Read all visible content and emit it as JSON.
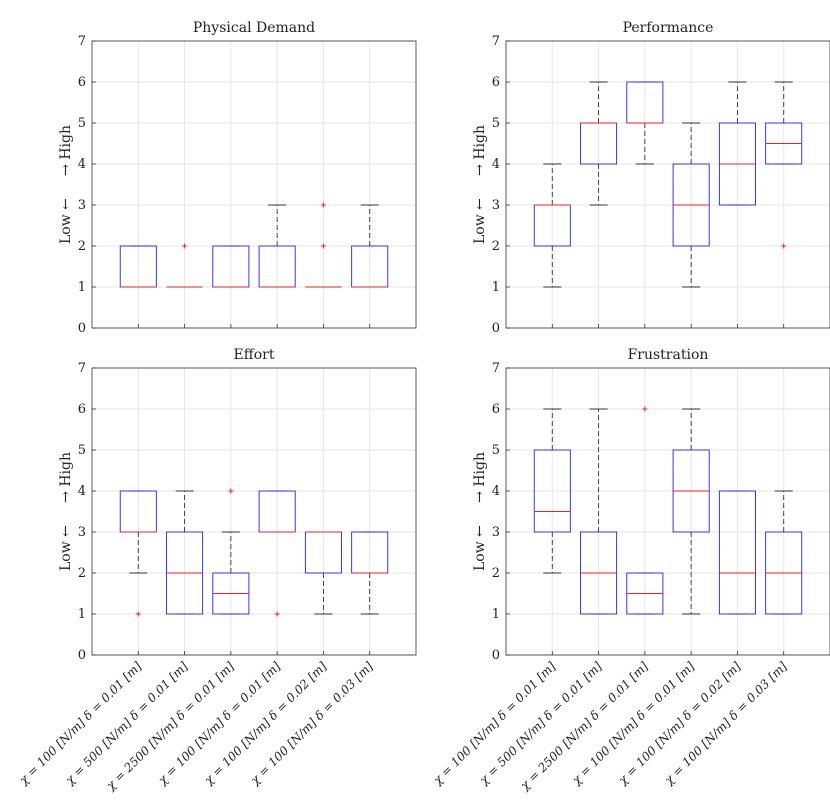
{
  "chart_data": [
    {
      "type": "box",
      "title": "Physical Demand",
      "ylabel": "Low ←     → High",
      "ylim": [
        0,
        7
      ],
      "yticks": [
        0,
        1,
        2,
        3,
        4,
        5,
        6,
        7
      ],
      "grid": true,
      "categories": [],
      "boxes": [
        {
          "q1": 1,
          "median": 1,
          "q3": 2,
          "whisker_low": 1,
          "whisker_high": 2,
          "outliers": []
        },
        {
          "q1": 1,
          "median": 1,
          "q3": 1,
          "whisker_low": 1,
          "whisker_high": 1,
          "outliers": [
            2
          ]
        },
        {
          "q1": 1,
          "median": 1,
          "q3": 2,
          "whisker_low": 1,
          "whisker_high": 2,
          "outliers": []
        },
        {
          "q1": 1,
          "median": 1,
          "q3": 2,
          "whisker_low": 1,
          "whisker_high": 3,
          "outliers": []
        },
        {
          "q1": 1,
          "median": 1,
          "q3": 1,
          "whisker_low": 1,
          "whisker_high": 1,
          "outliers": [
            2,
            3
          ]
        },
        {
          "q1": 1,
          "median": 1,
          "q3": 2,
          "whisker_low": 1,
          "whisker_high": 3,
          "outliers": []
        }
      ]
    },
    {
      "type": "box",
      "title": "Performance",
      "ylabel": "Low ←     → High",
      "ylim": [
        0,
        7
      ],
      "yticks": [
        0,
        1,
        2,
        3,
        4,
        5,
        6,
        7
      ],
      "grid": true,
      "categories": [],
      "boxes": [
        {
          "q1": 2,
          "median": 3,
          "q3": 3,
          "whisker_low": 1,
          "whisker_high": 4,
          "outliers": []
        },
        {
          "q1": 4,
          "median": 5,
          "q3": 5,
          "whisker_low": 3,
          "whisker_high": 6,
          "outliers": []
        },
        {
          "q1": 5,
          "median": 5,
          "q3": 6,
          "whisker_low": 4,
          "whisker_high": 6,
          "outliers": []
        },
        {
          "q1": 2,
          "median": 3,
          "q3": 4,
          "whisker_low": 1,
          "whisker_high": 5,
          "outliers": []
        },
        {
          "q1": 3,
          "median": 4,
          "q3": 5,
          "whisker_low": 3,
          "whisker_high": 6,
          "outliers": []
        },
        {
          "q1": 4,
          "median": 4.5,
          "q3": 5,
          "whisker_low": 4,
          "whisker_high": 6,
          "outliers": [
            2
          ]
        }
      ]
    },
    {
      "type": "box",
      "title": "Effort",
      "ylabel": "Low ←     → High",
      "ylim": [
        0,
        7
      ],
      "yticks": [
        0,
        1,
        2,
        3,
        4,
        5,
        6,
        7
      ],
      "grid": true,
      "categories": [
        "χ = 100 [N/m] δ = 0.01 [m]",
        "χ = 500 [N/m] δ = 0.01 [m]",
        "χ = 2500 [N/m] δ = 0.01 [m]",
        "χ = 100 [N/m] δ = 0.01 [m]",
        "χ = 100 [N/m] δ = 0.02 [m]",
        "χ = 100 [N/m] δ = 0.03 [m]"
      ],
      "boxes": [
        {
          "q1": 3,
          "median": 3,
          "q3": 4,
          "whisker_low": 2,
          "whisker_high": 4,
          "outliers": [
            1
          ]
        },
        {
          "q1": 1,
          "median": 2,
          "q3": 3,
          "whisker_low": 1,
          "whisker_high": 4,
          "outliers": []
        },
        {
          "q1": 1,
          "median": 1.5,
          "q3": 2,
          "whisker_low": 1,
          "whisker_high": 3,
          "outliers": [
            4
          ]
        },
        {
          "q1": 3,
          "median": 3,
          "q3": 4,
          "whisker_low": 3,
          "whisker_high": 4,
          "outliers": [
            1
          ]
        },
        {
          "q1": 2,
          "median": 3,
          "q3": 3,
          "whisker_low": 1,
          "whisker_high": 3,
          "outliers": []
        },
        {
          "q1": 2,
          "median": 2,
          "q3": 3,
          "whisker_low": 1,
          "whisker_high": 3,
          "outliers": []
        }
      ]
    },
    {
      "type": "box",
      "title": "Frustration",
      "ylabel": "Low ←     → High",
      "ylim": [
        0,
        7
      ],
      "yticks": [
        0,
        1,
        2,
        3,
        4,
        5,
        6,
        7
      ],
      "grid": true,
      "categories": [
        "χ = 100 [N/m] δ = 0.01 [m]",
        "χ = 500 [N/m] δ = 0.01 [m]",
        "χ = 2500 [N/m] δ = 0.01 [m]",
        "χ = 100 [N/m] δ = 0.01 [m]",
        "χ = 100 [N/m] δ = 0.02 [m]",
        "χ = 100 [N/m] δ = 0.03 [m]"
      ],
      "boxes": [
        {
          "q1": 3,
          "median": 3.5,
          "q3": 5,
          "whisker_low": 2,
          "whisker_high": 6,
          "outliers": []
        },
        {
          "q1": 1,
          "median": 2,
          "q3": 3,
          "whisker_low": 1,
          "whisker_high": 6,
          "outliers": []
        },
        {
          "q1": 1,
          "median": 1.5,
          "q3": 2,
          "whisker_low": 1,
          "whisker_high": 2,
          "outliers": [
            6
          ]
        },
        {
          "q1": 3,
          "median": 4,
          "q3": 5,
          "whisker_low": 1,
          "whisker_high": 6,
          "outliers": []
        },
        {
          "q1": 1,
          "median": 2,
          "q3": 4,
          "whisker_low": 1,
          "whisker_high": 4,
          "outliers": []
        },
        {
          "q1": 1,
          "median": 2,
          "q3": 3,
          "whisker_low": 1,
          "whisker_high": 4,
          "outliers": []
        }
      ]
    }
  ],
  "colors": {
    "box": "#2222ee",
    "median": "#ee2222",
    "whisker": "#333333",
    "outlier": "#ee2222",
    "grid": "#e6e6e6",
    "axis": "#333333"
  }
}
